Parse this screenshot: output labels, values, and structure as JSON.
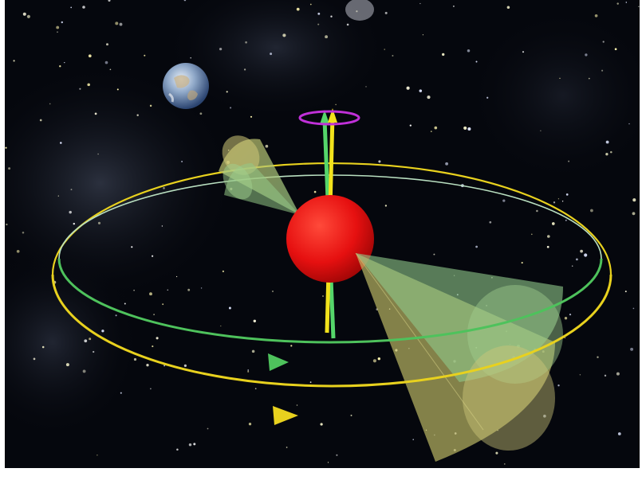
{
  "scene": {
    "objects": [
      {
        "name": "earth",
        "kind": "planet"
      },
      {
        "name": "pulsar",
        "kind": "star",
        "color": "#e61010"
      },
      {
        "name": "spin-axis-green",
        "color": "#55d66a"
      },
      {
        "name": "spin-axis-yellow",
        "color": "#f2e21c"
      },
      {
        "name": "precession-ring",
        "color": "#c030d8"
      },
      {
        "name": "orbit-green",
        "color": "#4ec25c"
      },
      {
        "name": "orbit-yellow",
        "color": "#e8d11e"
      },
      {
        "name": "beam-cones",
        "color": "#c7c468"
      }
    ],
    "colors": {
      "background": "#05070d",
      "nebula": "#3a4155",
      "pulsar": "#e61010",
      "orbit_green": "#4ec25c",
      "orbit_yellow": "#e8d11e",
      "precession": "#c030d8",
      "beam_yellow": "#c8c36a",
      "beam_green": "#8fca8a"
    }
  }
}
